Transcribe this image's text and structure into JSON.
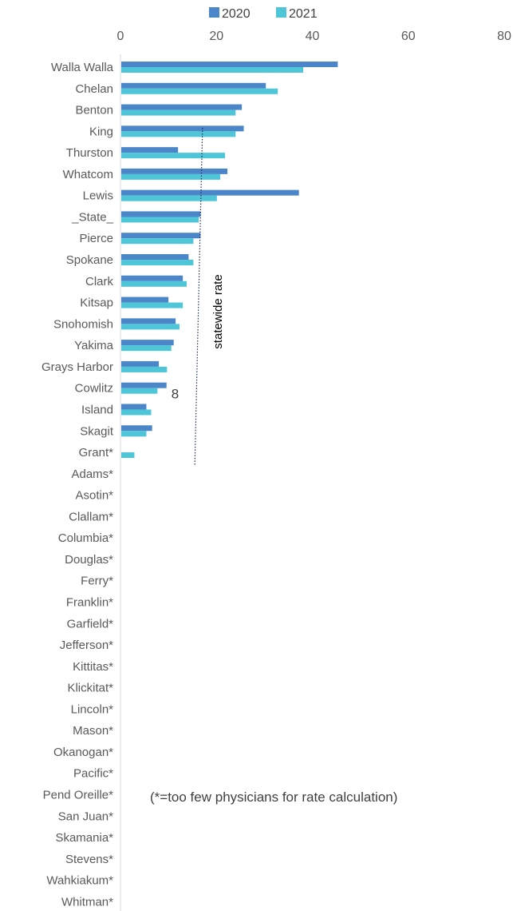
{
  "chart_data": {
    "type": "bar",
    "orientation": "horizontal",
    "title": "",
    "xlim": [
      0,
      80
    ],
    "x_ticks": [
      0,
      20,
      40,
      60,
      80
    ],
    "legend_position": "top",
    "grid": false,
    "categories": [
      "Walla Walla",
      "Chelan",
      "Benton",
      "King",
      "Thurston",
      "Whatcom",
      "Lewis",
      "_State_",
      "Pierce",
      "Spokane",
      "Clark",
      "Kitsap",
      "Snohomish",
      "Yakima",
      "Grays Harbor",
      "Cowlitz",
      "Island",
      "Skagit",
      "Grant*",
      "Adams*",
      "Asotin*",
      "Clallam*",
      "Columbia*",
      "Douglas*",
      "Ferry*",
      "Franklin*",
      "Garfield*",
      "Jefferson*",
      "Kittitas*",
      "Klickitat*",
      "Lincoln*",
      "Mason*",
      "Okanogan*",
      "Pacific*",
      "Pend Oreille*",
      "San Juan*",
      "Skamania*",
      "Stevens*",
      "Wahkiakum*",
      "Whitman*"
    ],
    "series": [
      {
        "name": "2020",
        "color": "#4a86c8",
        "values": [
          45.3,
          30.3,
          25.3,
          25.7,
          12.0,
          22.3,
          37.2,
          16.7,
          16.7,
          14.2,
          13.0,
          10.0,
          11.5,
          11.1,
          8.0,
          9.6,
          5.4,
          6.6,
          null,
          null,
          null,
          null,
          null,
          null,
          null,
          null,
          null,
          null,
          null,
          null,
          null,
          null,
          null,
          null,
          null,
          null,
          null,
          null,
          null,
          null
        ]
      },
      {
        "name": "2021",
        "color": "#4fc6d8",
        "values": [
          38.1,
          32.8,
          24.0,
          24.0,
          21.8,
          20.8,
          20.1,
          16.3,
          15.2,
          15.2,
          13.8,
          13.0,
          12.3,
          10.6,
          9.7,
          7.7,
          6.4,
          5.4,
          2.9,
          null,
          null,
          null,
          null,
          null,
          null,
          null,
          null,
          null,
          null,
          null,
          null,
          null,
          null,
          null,
          null,
          null,
          null,
          null,
          null,
          null
        ]
      }
    ],
    "reference_line": {
      "label": "statewide  rate",
      "value": 16.3
    },
    "data_labels": [
      {
        "category": "Cowlitz",
        "text": "8"
      }
    ],
    "footnote": "(*=too few physicians for rate calculation)"
  }
}
